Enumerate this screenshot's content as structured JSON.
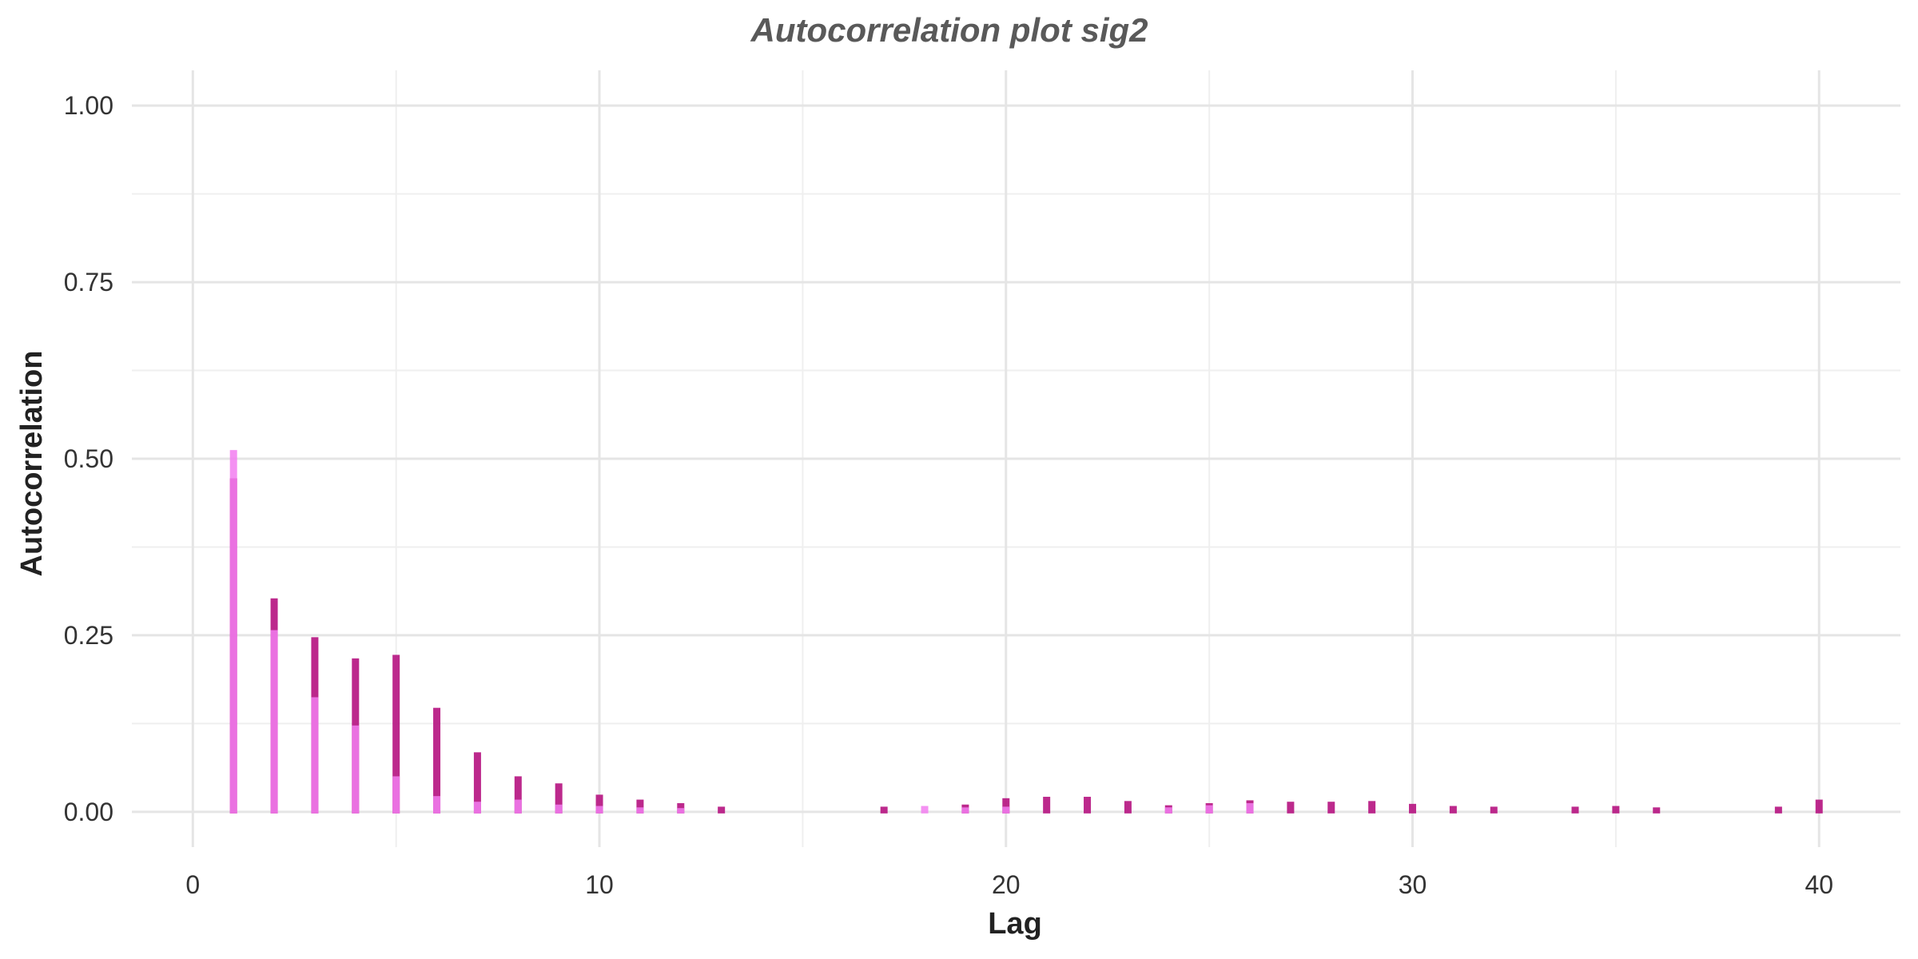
{
  "colors": {
    "background": "#ffffff",
    "grid_major": "#e5e5e5",
    "grid_minor": "#efefef",
    "series_dark": "#b5127f",
    "series_light": "#f27ef0"
  },
  "chart_data": {
    "type": "bar",
    "title": "Autocorrelation plot sig2",
    "xlabel": "Lag",
    "ylabel": "Autocorrelation",
    "xlim": [
      -1.5,
      42
    ],
    "ylim": [
      -0.05,
      1.05
    ],
    "x_ticks": [
      0,
      10,
      20,
      30,
      40
    ],
    "x_tick_labels": [
      "0",
      "10",
      "20",
      "30",
      "40"
    ],
    "y_ticks": [
      0,
      0.25,
      0.5,
      0.75,
      1
    ],
    "y_tick_labels": [
      "0.00",
      "0.25",
      "0.50",
      "0.75",
      "1.00"
    ],
    "grid": true,
    "legend": "none",
    "series": [
      {
        "color": "#b5127f",
        "x": [
          1,
          2,
          3,
          4,
          5,
          6,
          7,
          8,
          9,
          10,
          11,
          12,
          13,
          17,
          19,
          20,
          21,
          22,
          23,
          24,
          25,
          26,
          27,
          28,
          29,
          30,
          31,
          32,
          34,
          35,
          36,
          39,
          40
        ],
        "values": [
          0.47,
          0.3,
          0.245,
          0.215,
          0.22,
          0.145,
          0.082,
          0.048,
          0.038,
          0.022,
          0.015,
          0.01,
          0.005,
          0.005,
          0.008,
          0.017,
          0.019,
          0.019,
          0.013,
          0.007,
          0.01,
          0.014,
          0.012,
          0.012,
          0.013,
          0.009,
          0.006,
          0.005,
          0.005,
          0.006,
          0.004,
          0.005,
          0.015
        ]
      },
      {
        "color": "#f27ef0",
        "x": [
          1,
          2,
          3,
          4,
          5,
          6,
          7,
          8,
          9,
          10,
          11,
          12,
          18,
          19,
          20,
          24,
          25,
          26
        ],
        "values": [
          0.51,
          0.255,
          0.16,
          0.12,
          0.048,
          0.02,
          0.012,
          0.015,
          0.008,
          0.006,
          0.004,
          0.003,
          0.006,
          0.004,
          0.005,
          0.004,
          0.007,
          0.01
        ]
      }
    ]
  }
}
